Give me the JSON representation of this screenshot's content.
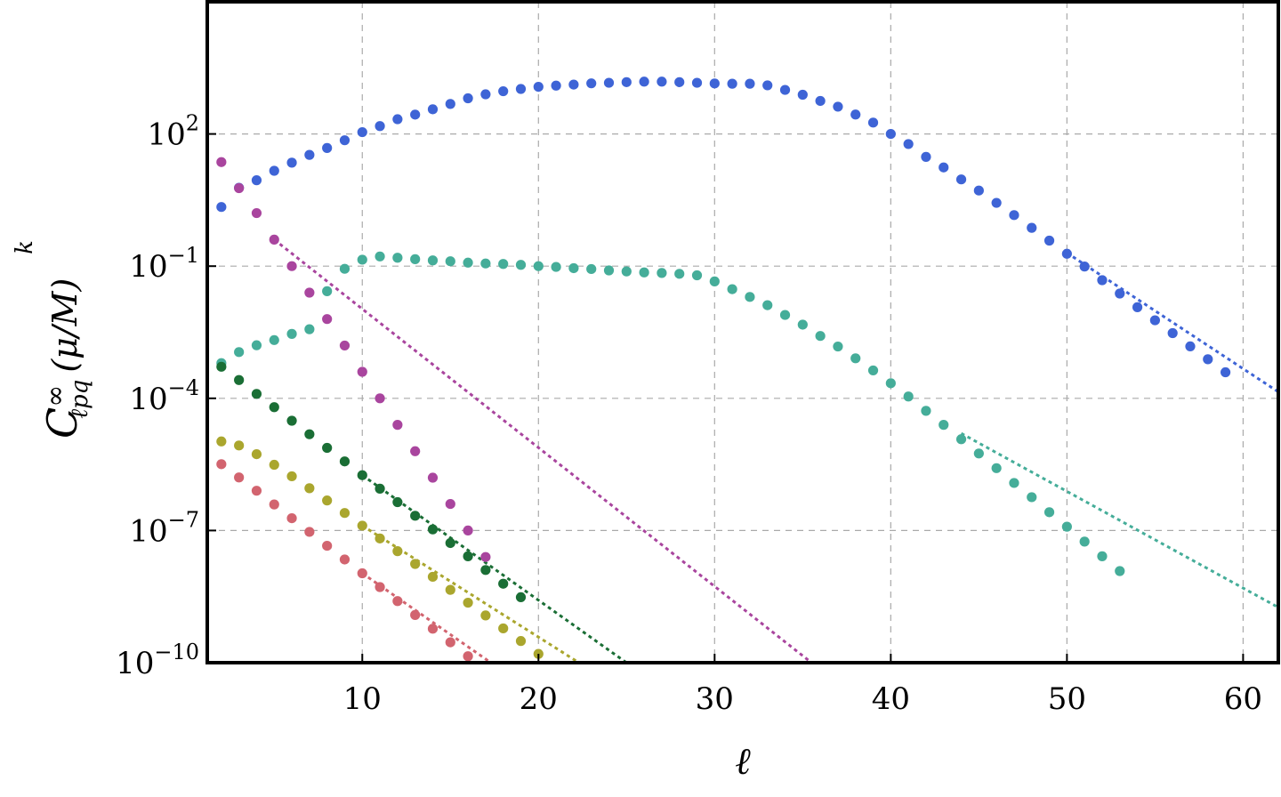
{
  "chart_data": {
    "type": "scatter",
    "xlabel": "ℓ",
    "ylabel": {
      "top": "k",
      "main": "C",
      "sup": "∞",
      "sub": "ℓpq",
      "paren": "(μ/M)"
    },
    "xlim": [
      1.2,
      62.0
    ],
    "ylim": [
      1e-10,
      100000.0
    ],
    "y_scale": "log",
    "x_ticks": [
      10,
      20,
      30,
      40,
      50,
      60
    ],
    "y_ticks": [
      {
        "value": 100.0,
        "base": "10",
        "exp": "2"
      },
      {
        "value": 0.1,
        "base": "10",
        "exp": "−1"
      },
      {
        "value": 0.0001,
        "base": "10",
        "exp": "−4"
      },
      {
        "value": 1e-07,
        "base": "10",
        "exp": "−7"
      },
      {
        "value": 1e-10,
        "base": "10",
        "exp": "−10"
      }
    ],
    "grid": true,
    "series": [
      {
        "color": "#3e64d6",
        "x": [
          2,
          3,
          4,
          5,
          6,
          7,
          8,
          9,
          10,
          11,
          12,
          13,
          14,
          15,
          16,
          17,
          18,
          19,
          20,
          21,
          22,
          23,
          24,
          25,
          26,
          27,
          28,
          29,
          30,
          31,
          32,
          33,
          34,
          35,
          36,
          37,
          38,
          39,
          40,
          41,
          42,
          43,
          44,
          45,
          46,
          47,
          48,
          49,
          50,
          51,
          52,
          53,
          54,
          55,
          56,
          57,
          58,
          59
        ],
        "y": [
          2.2,
          6.0,
          8.9,
          14.6,
          22.3,
          33.5,
          48,
          72,
          110,
          151,
          216,
          275,
          363,
          480,
          645,
          794,
          933,
          1050,
          1175,
          1250,
          1320,
          1410,
          1450,
          1500,
          1540,
          1540,
          1500,
          1450,
          1400,
          1380,
          1380,
          1270,
          1000,
          776,
          562,
          416,
          276,
          181,
          100,
          59,
          30.2,
          17.4,
          9.3,
          5.2,
          2.73,
          1.44,
          0.74,
          0.38,
          0.191,
          0.098,
          0.048,
          0.0239,
          0.0117,
          0.0059,
          0.00302,
          0.00151,
          0.00077,
          0.00039
        ],
        "fit": [
          [
            50,
            0.2
          ],
          [
            62,
            0.00014
          ]
        ]
      },
      {
        "color": "#a9459e",
        "x": [
          2,
          3,
          4,
          5,
          6,
          7,
          8,
          9,
          10,
          11,
          12,
          13,
          14,
          15,
          16,
          17
        ],
        "y": [
          23,
          5.9,
          1.6,
          0.4,
          0.1,
          0.025,
          0.0063,
          0.00158,
          0.0004,
          0.0001,
          2.5e-05,
          6.3e-06,
          1.58e-06,
          4e-07,
          1e-07,
          2.5e-08
        ],
        "fit": [
          [
            5,
            0.4
          ],
          [
            35.5,
            1e-10
          ]
        ]
      },
      {
        "color": "#45ad99",
        "x": [
          2,
          3,
          4,
          5,
          6,
          7,
          8,
          9,
          10,
          11,
          12,
          13,
          14,
          15,
          16,
          17,
          18,
          19,
          20,
          21,
          22,
          23,
          24,
          25,
          26,
          27,
          28,
          29,
          30,
          31,
          32,
          33,
          34,
          35,
          36,
          37,
          38,
          39,
          40,
          41,
          42,
          43,
          44,
          45,
          46,
          47,
          48,
          49,
          50,
          51,
          52,
          53
        ],
        "y": [
          0.00063,
          0.00112,
          0.0016,
          0.0021,
          0.0029,
          0.0037,
          0.027,
          0.087,
          0.14,
          0.166,
          0.155,
          0.144,
          0.135,
          0.129,
          0.12,
          0.115,
          0.112,
          0.107,
          0.1,
          0.096,
          0.09,
          0.086,
          0.08,
          0.076,
          0.072,
          0.07,
          0.067,
          0.062,
          0.045,
          0.03,
          0.02,
          0.013,
          0.0078,
          0.0047,
          0.0026,
          0.0015,
          0.00081,
          0.00043,
          0.00022,
          0.00011,
          5.2e-05,
          2.5e-05,
          1.18e-05,
          5.6e-06,
          2.6e-06,
          1.2e-06,
          5.7e-07,
          2.6e-07,
          1.22e-07,
          5.6e-08,
          2.6e-08,
          1.2e-08
        ],
        "fit": [
          [
            44,
            1.6e-05
          ],
          [
            62,
            1.8e-09
          ]
        ]
      },
      {
        "color": "#1a6e35",
        "x": [
          2,
          3,
          4,
          5,
          6,
          7,
          8,
          9,
          10,
          11,
          12,
          13,
          14,
          15,
          16,
          17,
          18,
          19
        ],
        "y": [
          0.00052,
          0.00026,
          0.000126,
          6.3e-05,
          3.1e-05,
          1.53e-05,
          7.5e-06,
          3.7e-06,
          1.8e-06,
          8.9e-07,
          4.4e-07,
          2.16e-07,
          1.06e-07,
          5.2e-08,
          2.6e-08,
          1.27e-08,
          6.2e-09,
          3.06e-09
        ],
        "fit": [
          [
            10,
            1.8e-06
          ],
          [
            25,
            1e-10
          ]
        ]
      },
      {
        "color": "#aaa62e",
        "x": [
          2,
          3,
          4,
          5,
          6,
          7,
          8,
          9,
          10,
          11,
          12,
          13,
          14,
          15,
          16,
          17,
          18,
          19,
          20
        ],
        "y": [
          1.05e-05,
          8.5e-06,
          5.4e-06,
          3.1e-06,
          1.7e-06,
          9.1e-07,
          4.8e-07,
          2.5e-07,
          1.29e-07,
          6.6e-08,
          3.4e-08,
          1.74e-08,
          8.9e-09,
          4.5e-09,
          2.3e-09,
          1.18e-09,
          6e-10,
          3.1e-10,
          1.58e-10
        ],
        "fit": [
          [
            10,
            1.29e-07
          ],
          [
            22.3,
            1e-10
          ]
        ]
      },
      {
        "color": "#d2646f",
        "x": [
          2,
          3,
          4,
          5,
          6,
          7,
          8,
          9,
          10,
          11,
          12,
          13,
          14,
          15,
          16,
          17
        ],
        "y": [
          3.2e-06,
          1.6e-06,
          8e-07,
          3.9e-07,
          1.9e-07,
          9.3e-08,
          4.5e-08,
          2.2e-08,
          1.07e-08,
          5.2e-09,
          2.5e-09,
          1.21e-09,
          5.9e-10,
          2.9e-10,
          1.4e-10,
          6.8e-11
        ],
        "fit": [
          [
            10,
            1.07e-08
          ],
          [
            17.3,
            1e-10
          ]
        ]
      }
    ]
  }
}
